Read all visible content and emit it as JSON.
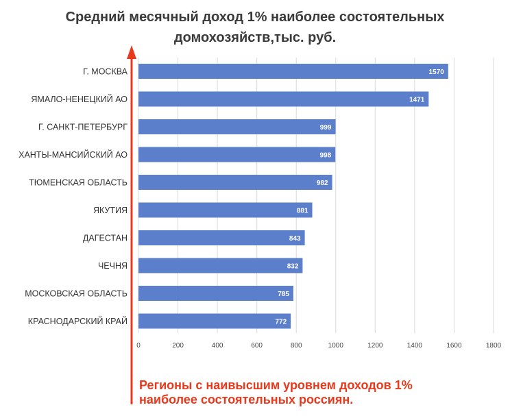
{
  "chart_data": {
    "type": "bar",
    "orientation": "horizontal",
    "title_lines": [
      "Средний месячный доход 1% наиболее состоятельных",
      "домохозяйств,тыс. руб."
    ],
    "categories": [
      "Г. МОСКВА",
      "ЯМАЛО-НЕНЕЦКИЙ АО",
      "Г. САНКТ-ПЕТЕРБУРГ",
      "ХАНТЫ-МАНСИЙСКИЙ АО",
      "ТЮМЕНСКАЯ ОБЛАСТЬ",
      "ЯКУТИЯ",
      "ДАГЕСТАН",
      "ЧЕЧНЯ",
      "МОСКОВСКАЯ ОБЛАСТЬ",
      "КРАСНОДАРСКИЙ КРАЙ"
    ],
    "values": [
      1570,
      1471,
      999,
      998,
      982,
      881,
      843,
      832,
      785,
      772
    ],
    "xlim": [
      0,
      1800
    ],
    "xticks": [
      0,
      200,
      400,
      600,
      800,
      1000,
      1200,
      1400,
      1600,
      1800
    ],
    "grid": "vertical",
    "data_labels": "inside-end",
    "bar_color": "#5b7fcb",
    "arrow_color": "#e8391d"
  },
  "annotation": {
    "lines": [
      "Регионы с наивысшим уровнем доходов 1%",
      "наиболее состоятельных россиян."
    ]
  }
}
